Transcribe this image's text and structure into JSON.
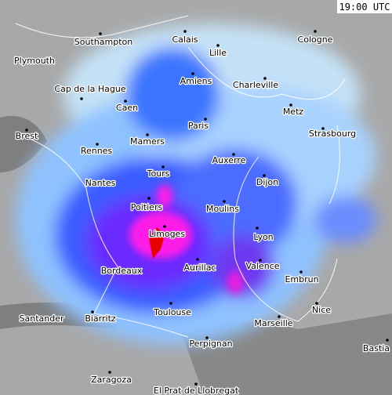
{
  "timestamp": "19:00 UTC",
  "places": [
    "Southampton",
    "Plymouth",
    "Calais",
    "Cologne",
    "Lille",
    "Cap de la Hague",
    "Amiens",
    "Charleville",
    "Caen",
    "Metz",
    "Paris",
    "Brest",
    "Mamers",
    "Strasbourg",
    "Rennes",
    "Auxerre",
    "Tours",
    "Nantes",
    "Dijon",
    "Poitiers",
    "Moulins",
    "Limoges",
    "Lyon",
    "Aurillac",
    "Valence",
    "Bordeaux",
    "Embrun",
    "Nice",
    "Toulouse",
    "Santander",
    "Biarritz",
    "Marseille",
    "Perpignan",
    "Bastia",
    "Zaragoza",
    "El Prat de Llobregat"
  ]
}
